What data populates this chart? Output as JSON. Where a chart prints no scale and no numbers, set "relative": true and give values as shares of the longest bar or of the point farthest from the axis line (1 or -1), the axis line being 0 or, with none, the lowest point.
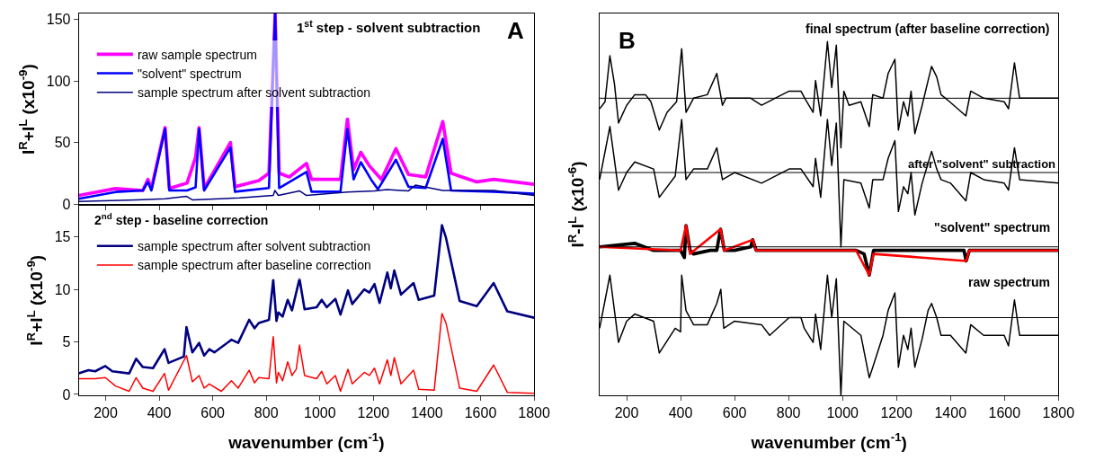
{
  "chart_data": [
    {
      "type": "line",
      "xlim": [
        100,
        1800
      ],
      "xticks": [
        200,
        400,
        600,
        800,
        1000,
        1200,
        1400,
        1600,
        1800
      ],
      "ylim": [
        -1,
        155
      ],
      "yticks": [
        0,
        50,
        100,
        150
      ],
      "ylabel": "I$^{R}$+I$^{L}$ (x10$^{-9}$)",
      "tick_labels": "y",
      "grid": false,
      "legend": "top left",
      "annotations": [
        "1$^{st}$ step - solvent subtraction",
        "A"
      ],
      "series": [
        {
          "name": "raw sample spectrum",
          "color": "#ff00ff",
          "x": [
            100,
            237,
            339,
            358,
            371,
            422,
            438,
            504,
            536,
            549,
            568,
            666,
            683,
            772,
            810,
            833,
            848,
            886,
            950,
            969,
            1077,
            1103,
            1126,
            1153,
            1185,
            1230,
            1284,
            1331,
            1395,
            1459,
            1490,
            1586,
            1650,
            1800
          ],
          "values": [
            7,
            12.6,
            11,
            20,
            12.6,
            62,
            12.6,
            17,
            38,
            62,
            12.6,
            50,
            14,
            19,
            25,
            155,
            25,
            22,
            33,
            20,
            20,
            69,
            28,
            42,
            31,
            20,
            45,
            24,
            22,
            67,
            25,
            18,
            20,
            16
          ]
        },
        {
          "name": "\"solvent\" spectrum",
          "color": "#0000ff",
          "x": [
            100,
            237,
            339,
            358,
            371,
            422,
            438,
            504,
            536,
            549,
            568,
            666,
            683,
            810,
            833,
            848,
            950,
            969,
            1077,
            1103,
            1126,
            1153,
            1191,
            1217,
            1284,
            1331,
            1395,
            1459,
            1490,
            1650,
            1800
          ],
          "values": [
            4.2,
            9.8,
            11,
            18,
            11,
            61,
            11,
            11,
            13.5,
            61,
            11,
            46,
            10,
            13,
            155,
            13,
            26,
            10,
            10,
            61,
            20,
            34,
            20,
            12,
            36,
            14,
            13,
            53,
            11,
            10,
            8.4
          ]
        },
        {
          "name": "sample spectrum after solvent subtraction",
          "color": "#000080",
          "x": [
            100,
            314,
            422,
            502,
            524,
            700,
            826,
            832,
            845,
            924,
            950,
            1103,
            1204,
            1250,
            1331,
            1357,
            1459,
            1650,
            1800
          ],
          "values": [
            2,
            3.4,
            4.2,
            6.2,
            3.4,
            5,
            7,
            11,
            7,
            10.7,
            7,
            9.8,
            10.7,
            11.8,
            10.7,
            15.4,
            11,
            11,
            7
          ]
        }
      ]
    },
    {
      "type": "line",
      "xlim": [
        100,
        1800
      ],
      "xticks": [
        200,
        400,
        600,
        800,
        1000,
        1200,
        1400,
        1600,
        1800
      ],
      "ylim": [
        -0.1,
        18
      ],
      "yticks": [
        0,
        5,
        10,
        15
      ],
      "xlabel": "wavenumber (cm$^{-1}$)",
      "ylabel": "I$^{R}$+I$^{L}$ (x10$^{-9}$)",
      "grid": false,
      "legend": "top left",
      "annotations": [
        "2$^{nd}$ step - baseline correction"
      ],
      "series": [
        {
          "name": "sample spectrum after solvent subtraction",
          "color": "#000080",
          "x": [
            100,
            136,
            161,
            199,
            225,
            288,
            314,
            339,
            377,
            420,
            435,
            492,
            502,
            524,
            549,
            568,
            587,
            606,
            670,
            695,
            736,
            756,
            772,
            810,
            826,
            838,
            845,
            861,
            880,
            896,
            924,
            943,
            988,
            1007,
            1026,
            1058,
            1077,
            1105,
            1121,
            1166,
            1185,
            1204,
            1223,
            1252,
            1265,
            1278,
            1303,
            1350,
            1369,
            1427,
            1456,
            1471,
            1522,
            1586,
            1649,
            1700,
            1800
          ],
          "values": [
            2.0,
            2.3,
            2.2,
            2.7,
            2.2,
            2.0,
            3.4,
            2.6,
            2.5,
            4.3,
            3.0,
            3.6,
            6.4,
            4.0,
            4.9,
            3.7,
            4.3,
            4.0,
            5.2,
            4.9,
            7.1,
            6.3,
            6.8,
            7.1,
            10.9,
            7.0,
            7.8,
            7.4,
            9.0,
            8.0,
            11.0,
            8.1,
            8.3,
            9.0,
            8.3,
            9.1,
            7.6,
            9.9,
            8.6,
            10.0,
            9.7,
            10.5,
            8.7,
            11.6,
            10.1,
            11.8,
            9.5,
            10.6,
            9.0,
            9.4,
            16.1,
            14.9,
            8.9,
            8.4,
            10.6,
            7.9,
            7.3
          ]
        },
        {
          "name": "sample spectrum after baseline correction",
          "color": "#ff0000",
          "x": [
            100,
            161,
            199,
            237,
            288,
            314,
            339,
            377,
            420,
            435,
            502,
            524,
            549,
            568,
            587,
            632,
            670,
            695,
            736,
            756,
            772,
            810,
            826,
            838,
            845,
            861,
            880,
            896,
            912,
            924,
            943,
            988,
            1007,
            1026,
            1058,
            1077,
            1105,
            1121,
            1166,
            1185,
            1204,
            1223,
            1252,
            1265,
            1278,
            1303,
            1350,
            1369,
            1427,
            1456,
            1471,
            1522,
            1586,
            1649,
            1700,
            1800
          ],
          "values": [
            1.5,
            1.5,
            1.6,
            0.8,
            0.3,
            1.6,
            0.6,
            0.3,
            2.0,
            0.4,
            3.7,
            1.2,
            1.8,
            0.6,
            1.0,
            0.3,
            1.3,
            0.6,
            2.3,
            1.1,
            1.6,
            1.5,
            5.5,
            1.1,
            2.1,
            1.3,
            3.1,
            1.8,
            2.4,
            4.7,
            1.8,
            1.5,
            2.2,
            1.0,
            1.8,
            0.3,
            2.4,
            1.0,
            2.1,
            1.8,
            2.5,
            1.0,
            3.3,
            1.8,
            3.5,
            1.0,
            2.3,
            0.5,
            0.4,
            7.7,
            6.8,
            0.6,
            0.3,
            2.8,
            0.2,
            0.1
          ]
        }
      ]
    },
    {
      "type": "line",
      "relative": true,
      "xlim": [
        100,
        1800
      ],
      "xticks": [
        200,
        400,
        600,
        800,
        1000,
        1200,
        1400,
        1600,
        1800
      ],
      "xlabel": "wavenumber (cm$^{-1}$)",
      "ylabel": "I$^{R}$-I$^{L}$ (x10$^{-6}$)",
      "tick_labels": "x",
      "grid": false,
      "annotations": [
        "B",
        "final spectrum (after baseline correction)",
        "after \"solvent\" subtraction",
        "\"solvent\" spectrum",
        "raw spectrum"
      ],
      "ref_lines": [
        {
          "axis": "y",
          "value": 0.84,
          "color": "#000000"
        },
        {
          "axis": "y",
          "value": 0.63,
          "color": "#000000"
        },
        {
          "axis": "y",
          "value": 0.42,
          "color": "#000000"
        },
        {
          "axis": "y",
          "value": 0.22,
          "color": "#000000"
        }
      ],
      "series": [
        {
          "color": "#000000",
          "x": [
            100,
            120,
            138,
            155,
            170,
            200,
            230,
            270,
            290,
            321,
            350,
            385,
            404,
            420,
            448,
            499,
            534,
            555,
            568,
            600,
            660,
            700,
            750,
            802,
            846,
            860,
            891,
            900,
            919,
            944,
            960,
            977,
            994,
            1005,
            1024,
            1068,
            1099,
            1112,
            1150,
            1169,
            1194,
            1207,
            1226,
            1242,
            1254,
            1268,
            1295,
            1317,
            1330,
            1349,
            1365,
            1397,
            1457,
            1475,
            1523,
            1599,
            1615,
            1637,
            1656,
            1800
          ],
          "values": [
            0.81,
            0.83,
            0.96,
            0.88,
            0.77,
            0.82,
            0.85,
            0.85,
            0.83,
            0.75,
            0.8,
            0.83,
            0.98,
            0.8,
            0.84,
            0.85,
            0.91,
            0.82,
            0.84,
            0.84,
            0.84,
            0.82,
            0.84,
            0.86,
            0.86,
            0.84,
            0.8,
            0.89,
            0.79,
            1.0,
            0.87,
            0.99,
            0.7,
            0.86,
            0.82,
            0.83,
            0.76,
            0.85,
            0.84,
            0.91,
            0.95,
            0.75,
            0.83,
            0.79,
            0.86,
            0.74,
            0.82,
            0.89,
            0.93,
            0.9,
            0.85,
            0.83,
            0.79,
            0.86,
            0.84,
            0.83,
            0.81,
            0.94,
            0.84,
            0.84
          ]
        },
        {
          "color": "#000000",
          "x": [
            100,
            138,
            170,
            200,
            230,
            300,
            321,
            380,
            404,
            420,
            448,
            499,
            534,
            555,
            600,
            700,
            802,
            846,
            891,
            900,
            919,
            944,
            960,
            977,
            994,
            1005,
            1068,
            1099,
            1112,
            1150,
            1169,
            1194,
            1207,
            1226,
            1242,
            1254,
            1268,
            1295,
            1330,
            1349,
            1365,
            1400,
            1457,
            1475,
            1523,
            1599,
            1615,
            1637,
            1656,
            1800
          ],
          "values": [
            0.61,
            0.76,
            0.58,
            0.63,
            0.66,
            0.64,
            0.56,
            0.62,
            0.78,
            0.61,
            0.64,
            0.64,
            0.7,
            0.61,
            0.63,
            0.6,
            0.64,
            0.64,
            0.59,
            0.67,
            0.56,
            0.78,
            0.65,
            0.77,
            0.42,
            0.61,
            0.6,
            0.53,
            0.61,
            0.61,
            0.67,
            0.72,
            0.52,
            0.59,
            0.57,
            0.63,
            0.51,
            0.6,
            0.69,
            0.64,
            0.61,
            0.6,
            0.55,
            0.63,
            0.61,
            0.6,
            0.58,
            0.7,
            0.61,
            0.6
          ]
        },
        {
          "color": "#000000",
          "x": [
            100,
            230,
            300,
            400,
            414,
            420,
            435,
            448,
            510,
            534,
            548,
            562,
            600,
            660,
            667,
            680,
            800,
            990,
            1050,
            1080,
            1099,
            1115,
            1200,
            1450,
            1458,
            1470,
            1800
          ],
          "values": [
            0.42,
            0.43,
            0.41,
            0.41,
            0.39,
            0.48,
            0.41,
            0.4,
            0.41,
            0.41,
            0.47,
            0.41,
            0.41,
            0.42,
            0.44,
            0.41,
            0.41,
            0.41,
            0.41,
            0.4,
            0.34,
            0.41,
            0.41,
            0.41,
            0.38,
            0.41,
            0.41
          ]
        },
        {
          "color": "#ff0000",
          "x": [
            100,
            400,
            420,
            435,
            548,
            562,
            667,
            680,
            1050,
            1099,
            1115,
            1458,
            1470,
            1800
          ],
          "values": [
            0.42,
            0.41,
            0.48,
            0.4,
            0.47,
            0.41,
            0.44,
            0.41,
            0.41,
            0.34,
            0.4,
            0.38,
            0.41,
            0.41
          ]
        },
        {
          "color": "#000000",
          "x": [
            100,
            138,
            170,
            200,
            230,
            300,
            321,
            380,
            400,
            404,
            420,
            448,
            499,
            534,
            549,
            560,
            600,
            700,
            730,
            802,
            846,
            858,
            891,
            900,
            919,
            944,
            960,
            977,
            994,
            1005,
            1068,
            1099,
            1112,
            1150,
            1169,
            1194,
            1207,
            1226,
            1242,
            1254,
            1268,
            1295,
            1317,
            1330,
            1349,
            1365,
            1400,
            1457,
            1475,
            1523,
            1599,
            1615,
            1637,
            1656,
            1800
          ],
          "values": [
            0.19,
            0.34,
            0.15,
            0.21,
            0.23,
            0.21,
            0.12,
            0.19,
            0.18,
            0.34,
            0.24,
            0.2,
            0.2,
            0.26,
            0.3,
            0.19,
            0.21,
            0.2,
            0.17,
            0.22,
            0.22,
            0.19,
            0.15,
            0.23,
            0.13,
            0.34,
            0.22,
            0.33,
            0,
            0.21,
            0.17,
            0.05,
            0.08,
            0.17,
            0.24,
            0.29,
            0.08,
            0.17,
            0.13,
            0.19,
            0.08,
            0.16,
            0.24,
            0.26,
            0.22,
            0.17,
            0.17,
            0.12,
            0.2,
            0.17,
            0.17,
            0.14,
            0.27,
            0.17,
            0.17
          ]
        }
      ]
    }
  ]
}
